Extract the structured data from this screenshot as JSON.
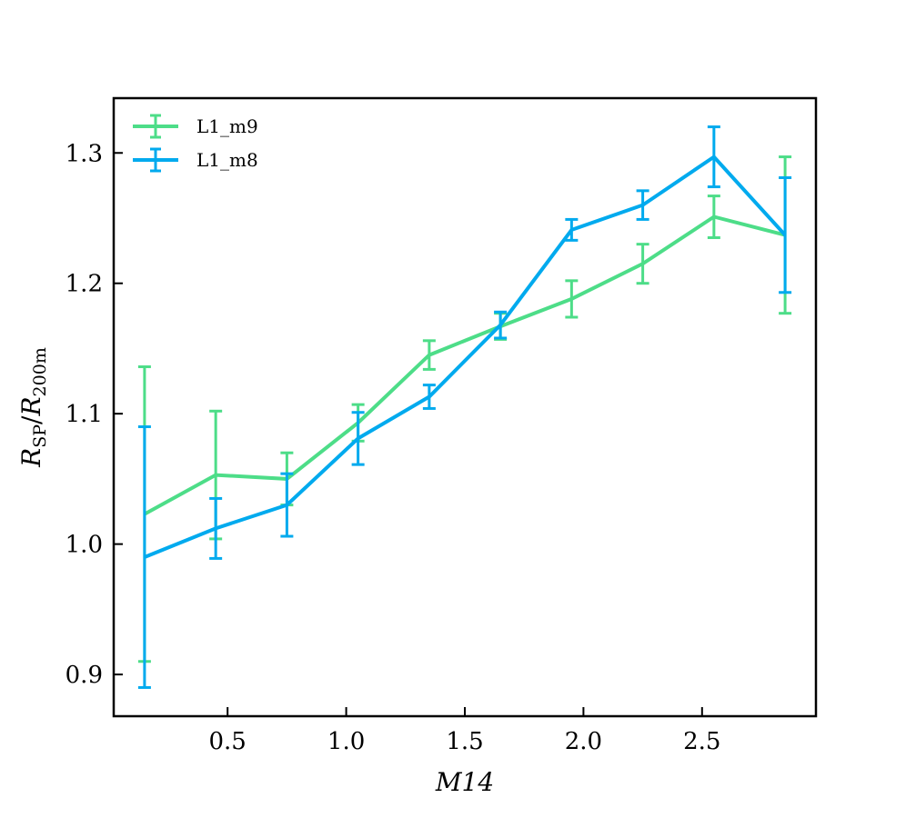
{
  "chart_data": {
    "type": "line",
    "xlabel": "M14",
    "ylabel": "R_SP/R_200m",
    "ylabel_parts": {
      "r1": "R",
      "sub1": "SP",
      "slash": "/",
      "r2": "R",
      "sub2": "200m"
    },
    "xlim": [
      0.02,
      2.98
    ],
    "ylim": [
      0.868,
      1.342
    ],
    "xticks": [
      0.5,
      1.0,
      1.5,
      2.0,
      2.5
    ],
    "xtick_labels": [
      "0.5",
      "1.0",
      "1.5",
      "2.0",
      "2.5"
    ],
    "yticks": [
      0.9,
      1.0,
      1.1,
      1.2,
      1.3
    ],
    "ytick_labels": [
      "0.9",
      "1.0",
      "1.1",
      "1.2",
      "1.3"
    ],
    "grid": false,
    "legend_position": "top-left",
    "series": [
      {
        "name": "L1_m9",
        "color": "#4ddd88",
        "x": [
          0.15,
          0.45,
          0.75,
          1.05,
          1.35,
          1.65,
          1.95,
          2.25,
          2.55,
          2.85
        ],
        "y": [
          1.023,
          1.053,
          1.05,
          1.093,
          1.145,
          1.167,
          1.188,
          1.215,
          1.251,
          1.237
        ],
        "yerr": [
          0.113,
          0.049,
          0.02,
          0.014,
          0.011,
          0.01,
          0.014,
          0.015,
          0.016,
          0.06
        ]
      },
      {
        "name": "L1_m8",
        "color": "#00aaee",
        "x": [
          0.15,
          0.45,
          0.75,
          1.05,
          1.35,
          1.65,
          1.95,
          2.25,
          2.55,
          2.85
        ],
        "y": [
          0.99,
          1.012,
          1.03,
          1.081,
          1.113,
          1.168,
          1.241,
          1.26,
          1.297,
          1.237
        ],
        "yerr": [
          0.1,
          0.023,
          0.024,
          0.02,
          0.009,
          0.01,
          0.008,
          0.011,
          0.023,
          0.044
        ]
      }
    ]
  }
}
